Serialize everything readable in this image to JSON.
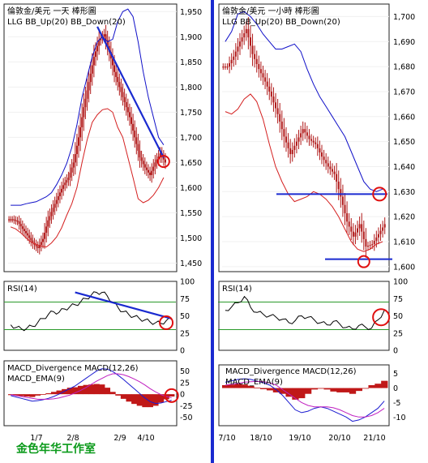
{
  "watermark": "金色年华工作室",
  "colors": {
    "upper_band": "#1010c8",
    "lower_band": "#d42020",
    "candle": "#b01818",
    "trendline": "#1a2ad0",
    "rsi_line": "#000000",
    "rsi_guides": "#2a9a2a",
    "macd_line": "#1a1ad0",
    "ema_line": "#c020c0",
    "divergence": "#c01818",
    "circle": "#e01010",
    "watermark": "#0a9a1a"
  },
  "chart_data": [
    {
      "panel": "left-price",
      "type": "candlestick",
      "title": "倫敦金/美元 一天 棒形圖",
      "subtitle": "LLG BB_Up(20) BB_Down(20)",
      "ylim": [
        1433,
        1965
      ],
      "yticks": [
        "1,950",
        "1,900",
        "1,850",
        "1,800",
        "1,750",
        "1,700",
        "1,650",
        "1,600",
        "1,550",
        "1,500",
        "1,450"
      ],
      "xticks": [
        "1/7",
        "2/8",
        "2/9",
        "4/10"
      ],
      "series": [
        {
          "name": "BB_Up(20)",
          "values": [
            1565,
            1565,
            1565,
            1568,
            1570,
            1572,
            1577,
            1582,
            1590,
            1606,
            1625,
            1648,
            1680,
            1725,
            1780,
            1820,
            1860,
            1890,
            1900,
            1890,
            1895,
            1930,
            1950,
            1955,
            1940,
            1890,
            1830,
            1780,
            1740,
            1700,
            1685
          ]
        },
        {
          "name": "BB_Down(20)",
          "values": [
            1522,
            1518,
            1510,
            1500,
            1492,
            1487,
            1484,
            1482,
            1490,
            1502,
            1520,
            1545,
            1568,
            1600,
            1650,
            1695,
            1730,
            1745,
            1755,
            1757,
            1750,
            1720,
            1700,
            1660,
            1620,
            1578,
            1570,
            1575,
            1585,
            1600,
            1620
          ]
        },
        {
          "name": "price",
          "values": [
            1537,
            1533,
            1518,
            1505,
            1490,
            1480,
            1498,
            1535,
            1560,
            1583,
            1605,
            1620,
            1650,
            1700,
            1760,
            1810,
            1860,
            1893,
            1905,
            1870,
            1830,
            1800,
            1770,
            1740,
            1700,
            1660,
            1640,
            1625,
            1650,
            1668,
            1650
          ]
        }
      ],
      "trendline": {
        "from": [
          17,
          1920
        ],
        "to": [
          30,
          1660
        ]
      },
      "marker": {
        "x": 30,
        "y": 1652
      }
    },
    {
      "panel": "right-price",
      "type": "candlestick",
      "title": "倫敦金/美元 一小時 棒形圖",
      "subtitle": "LLG BB_Up(20) BB_Down(20)",
      "ylim": [
        1598,
        1705
      ],
      "yticks": [
        "1,700",
        "1,690",
        "1,680",
        "1,670",
        "1,660",
        "1,650",
        "1,640",
        "1,630",
        "1,620",
        "1,610",
        "1,600"
      ],
      "xticks": [
        "7/10",
        "18/10",
        "19/10",
        "20/10",
        "21/10"
      ],
      "series": [
        {
          "name": "BB_Up(20)",
          "values": [
            1690,
            1694,
            1701,
            1702,
            1700,
            1697,
            1693,
            1690,
            1687,
            1687,
            1688,
            1689,
            1686,
            1679,
            1673,
            1668,
            1664,
            1660,
            1656,
            1652,
            1646,
            1640,
            1634,
            1631,
            1630,
            1631
          ]
        },
        {
          "name": "BB_Down(20)",
          "values": [
            1662,
            1661,
            1663,
            1667,
            1669,
            1666,
            1659,
            1649,
            1640,
            1634,
            1629,
            1626,
            1627,
            1628,
            1630,
            1629,
            1627,
            1624,
            1620,
            1615,
            1610,
            1607,
            1606,
            1607,
            1609,
            1610
          ]
        },
        {
          "name": "price",
          "values": [
            1680,
            1684,
            1690,
            1695,
            1685,
            1679,
            1674,
            1668,
            1661,
            1652,
            1645,
            1650,
            1655,
            1651,
            1649,
            1644,
            1640,
            1637,
            1628,
            1618,
            1612,
            1617,
            1608,
            1609,
            1613,
            1617
          ]
        }
      ],
      "support": 1603,
      "resistance": 1629,
      "marker_high": {
        "x": 24.5,
        "y": 1629
      },
      "marker_low": {
        "x": 22,
        "y": 1602
      }
    },
    {
      "panel": "left-rsi",
      "type": "line",
      "title": "RSI(14)",
      "ylim": [
        0,
        100
      ],
      "yticks": [
        "100",
        "75",
        "50",
        "25",
        "0"
      ],
      "guides": [
        70,
        30
      ],
      "values": [
        37,
        33,
        31,
        32,
        35,
        40,
        46,
        52,
        56,
        55,
        60,
        63,
        66,
        70,
        75,
        80,
        84,
        84,
        79,
        70,
        62,
        56,
        52,
        49,
        46,
        44,
        41,
        40,
        39,
        43,
        45
      ],
      "trendline": {
        "from": [
          12,
          84
        ],
        "to": [
          30,
          46
        ]
      },
      "marker": {
        "x": 29,
        "y": 40
      }
    },
    {
      "panel": "right-rsi",
      "type": "line",
      "title": "RSI(14)",
      "ylim": [
        0,
        100
      ],
      "yticks": [
        "100",
        "75",
        "50",
        "25",
        "0"
      ],
      "guides": [
        70,
        30
      ],
      "values": [
        58,
        63,
        69,
        78,
        62,
        55,
        52,
        50,
        48,
        45,
        40,
        43,
        50,
        48,
        44,
        40,
        37,
        42,
        38,
        33,
        31,
        36,
        34,
        32,
        44,
        58
      ],
      "marker": {
        "x": 24.5,
        "y": 48
      }
    },
    {
      "panel": "left-macd",
      "type": "line",
      "title": "MACD_Divergence MACD(12,26)",
      "subtitle": "MACD_EMA(9)",
      "ylim": [
        -68,
        72
      ],
      "yticks": [
        "50",
        "25",
        "0",
        "-25",
        "-50"
      ],
      "series": [
        {
          "name": "MACD(12,26)",
          "values": [
            -3,
            -6,
            -9,
            -12,
            -15,
            -14,
            -12,
            -9,
            -5,
            0,
            6,
            12,
            18,
            26,
            34,
            42,
            50,
            55,
            54,
            49,
            41,
            32,
            22,
            12,
            2,
            -8,
            -16,
            -20,
            -19,
            -16,
            -13
          ]
        },
        {
          "name": "MACD_EMA(9)",
          "values": [
            -1,
            -3,
            -5,
            -7,
            -9,
            -11,
            -11,
            -11,
            -10,
            -8,
            -5,
            -2,
            3,
            8,
            14,
            21,
            28,
            34,
            40,
            44,
            44,
            42,
            38,
            33,
            27,
            20,
            12,
            5,
            -1,
            -5,
            -8
          ]
        },
        {
          "name": "MACD_Divergence",
          "values": [
            -2,
            -3,
            -4,
            -5,
            -6,
            -3,
            -1,
            2,
            5,
            8,
            11,
            14,
            15,
            18,
            20,
            21,
            22,
            21,
            14,
            5,
            -3,
            -10,
            -16,
            -21,
            -25,
            -28,
            -28,
            -25,
            -18,
            -11,
            -5
          ]
        }
      ],
      "marker": {
        "x": 30,
        "y": -3
      }
    },
    {
      "panel": "right-macd",
      "type": "line",
      "title": "MACD_Divergence MACD(12,26)",
      "subtitle": "MACD_EMA(9)",
      "ylim": [
        -13,
        8
      ],
      "yticks": [
        "5",
        "0",
        "-5",
        "-10"
      ],
      "series": [
        {
          "name": "MACD(12,26)",
          "values": [
            2,
            2.5,
            3,
            3.2,
            3,
            2.4,
            1.8,
            1,
            -0.5,
            -2.5,
            -5,
            -7.5,
            -8.5,
            -8,
            -7,
            -6.5,
            -7,
            -8,
            -9,
            -10,
            -11.5,
            -11,
            -10,
            -8.5,
            -7,
            -4.5
          ]
        },
        {
          "name": "MACD_EMA(9)",
          "values": [
            1,
            1.3,
            1.6,
            2,
            2.2,
            2.3,
            2.2,
            1.8,
            1,
            -0.5,
            -2,
            -3.5,
            -5,
            -6,
            -6.5,
            -6.5,
            -6.5,
            -6.8,
            -7.5,
            -8.5,
            -9.5,
            -10,
            -10,
            -9.5,
            -8.5,
            -7
          ]
        },
        {
          "name": "MACD_Divergence",
          "values": [
            1,
            1.2,
            1.4,
            1.2,
            0.8,
            0.1,
            -0.4,
            -0.8,
            -1.5,
            -2,
            -3,
            -4,
            -3.5,
            -2,
            -0.5,
            0,
            -0.5,
            -1.2,
            -1.5,
            -1.5,
            -2,
            -1,
            0,
            1,
            1.5,
            2.5
          ]
        }
      ]
    }
  ]
}
